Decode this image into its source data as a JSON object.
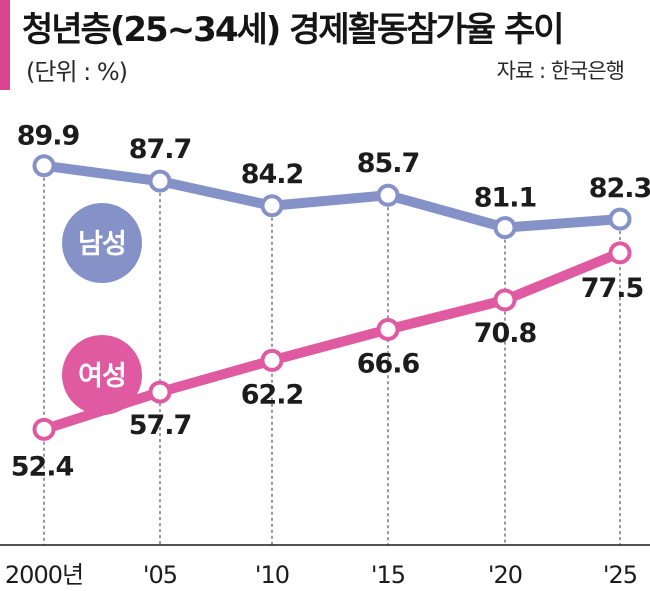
{
  "header": {
    "title": "청년층(25~34세) 경제활동참가율 추이",
    "unit": "(단위 : %)",
    "source": "자료 : 한국은행"
  },
  "colors": {
    "male": "#8592c8",
    "female": "#df5aa0",
    "accent": "#d9468f"
  },
  "chart_data": {
    "type": "line",
    "title": "청년층(25~34세) 경제활동참가율 추이",
    "categories": [
      "2000년",
      "'05",
      "'10",
      "'15",
      "'20",
      "'25"
    ],
    "series": [
      {
        "name": "남성",
        "values": [
          89.9,
          87.7,
          84.2,
          85.7,
          81.1,
          82.3
        ]
      },
      {
        "name": "여성",
        "values": [
          52.4,
          57.7,
          62.2,
          66.6,
          70.8,
          77.5
        ]
      }
    ],
    "ylabel": "%",
    "ylim": [
      45,
      95
    ]
  }
}
